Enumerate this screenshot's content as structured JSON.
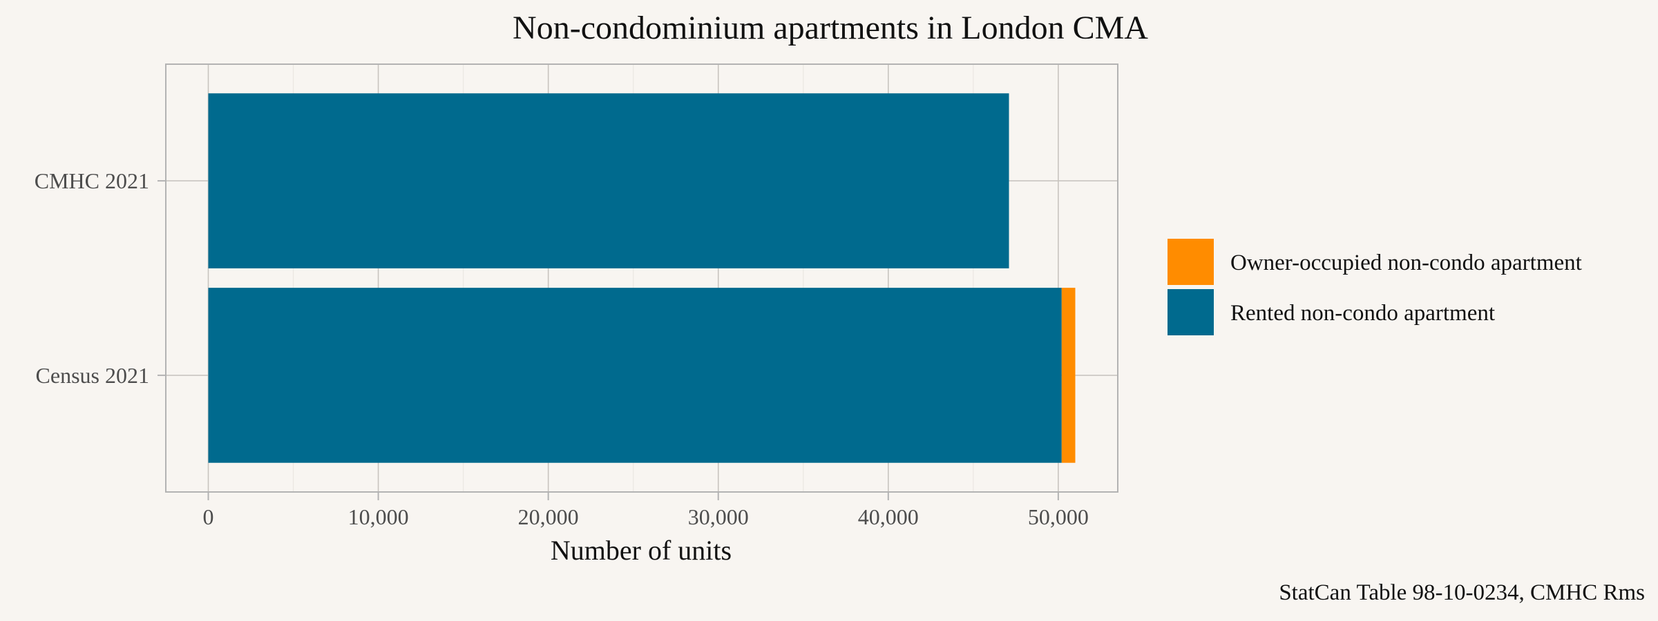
{
  "chart_data": {
    "type": "bar",
    "orientation": "horizontal",
    "stacked": true,
    "title": "Non-condominium apartments in London CMA",
    "xlabel": "Number of units",
    "ylabel": "",
    "categories": [
      "Census 2021",
      "CMHC 2021"
    ],
    "xlim": [
      -2500,
      53500
    ],
    "x_ticks": [
      0,
      10000,
      20000,
      30000,
      40000,
      50000
    ],
    "x_tick_labels": [
      "0",
      "10,000",
      "20,000",
      "30,000",
      "40,000",
      "50,000"
    ],
    "grid": true,
    "legend_position": "right",
    "series": [
      {
        "name": "Rented non-condo apartment",
        "color": "#006a8e",
        "values": [
          50200,
          47100
        ]
      },
      {
        "name": "Owner-occupied non-condo apartment",
        "color": "#ff8c00",
        "values": [
          800,
          0
        ]
      }
    ],
    "legend_order": [
      "Owner-occupied non-condo apartment",
      "Rented non-condo apartment"
    ],
    "caption": "StatCan Table 98-10-0234, CMHC Rms"
  }
}
